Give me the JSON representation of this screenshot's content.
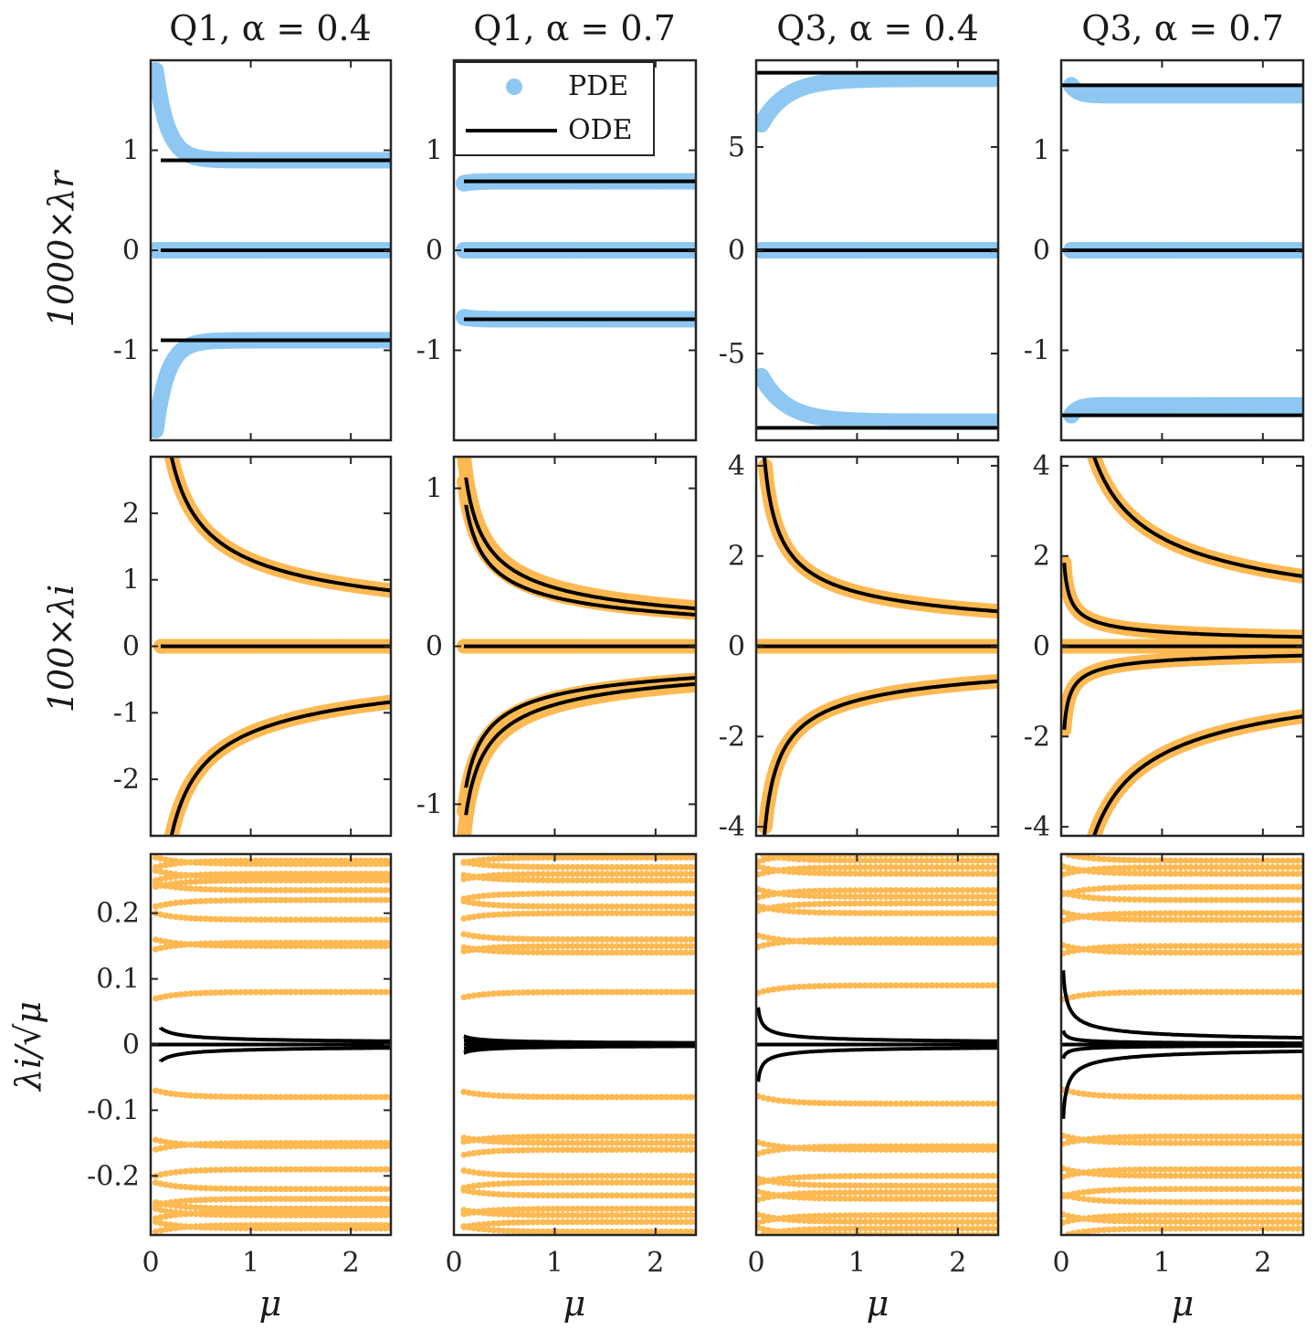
{
  "colors": {
    "pde_real": "#8ec8f2",
    "pde_imag": "#fdb952",
    "ode": "#000000",
    "axes": "#262626"
  },
  "columns": [
    {
      "title": "Q1, α = 0.4"
    },
    {
      "title": "Q1, α = 0.7"
    },
    {
      "title": "Q3, α = 0.4"
    },
    {
      "title": "Q3, α = 0.7"
    }
  ],
  "row_labels": [
    "1000×λr",
    "100×λi",
    "λi/√μ"
  ],
  "xlabel": "μ",
  "xlim": [
    0,
    2.4
  ],
  "xticks": [
    0,
    1,
    2
  ],
  "legend": {
    "pde": "PDE",
    "ode": "ODE"
  },
  "chart_data": [
    {
      "row": 0,
      "col": 0,
      "type": "scatter",
      "ylim": [
        -1.9,
        1.9
      ],
      "yticks": [
        -1,
        0,
        1
      ],
      "ytick_labels": [
        "-1",
        "0",
        "1"
      ],
      "pde": {
        "form": "decay",
        "amps": [
          0.9,
          0,
          -0.9
        ],
        "excess": [
          0.9,
          0,
          -0.9
        ],
        "tau": 0.12,
        "xmin": 0.05
      },
      "ode": {
        "values": [
          0.9,
          0,
          -0.9
        ],
        "xmin": 0.1
      }
    },
    {
      "row": 0,
      "col": 1,
      "type": "scatter",
      "ylim": [
        -1.9,
        1.9
      ],
      "yticks": [
        -1,
        0,
        1
      ],
      "ytick_labels": [
        "-1",
        "0",
        "1"
      ],
      "pde": {
        "form": "decay",
        "amps": [
          0.69,
          0,
          -0.69
        ],
        "excess": [
          -0.02,
          0,
          0.02
        ],
        "tau": 0.1,
        "xmin": 0.1
      },
      "ode": {
        "values": [
          0.69,
          0,
          -0.69
        ],
        "xmin": 0.1
      }
    },
    {
      "row": 0,
      "col": 2,
      "type": "scatter",
      "ylim": [
        -9.2,
        9.2
      ],
      "yticks": [
        -5,
        0,
        5
      ],
      "ytick_labels": [
        "-5",
        "0",
        "5"
      ],
      "pde": {
        "form": "decay",
        "amps": [
          8.3,
          0,
          -8.3
        ],
        "excess": [
          -2.2,
          0,
          2.2
        ],
        "tau": 0.25,
        "xmin": 0.05
      },
      "ode": {
        "values": [
          8.6,
          0,
          -8.6
        ],
        "xmin": 0.0
      }
    },
    {
      "row": 0,
      "col": 3,
      "type": "scatter",
      "ylim": [
        -1.9,
        1.9
      ],
      "yticks": [
        -1,
        0,
        1
      ],
      "ytick_labels": [
        "-1",
        "0",
        "1"
      ],
      "pde": {
        "form": "decay",
        "amps": [
          1.55,
          0,
          -1.55
        ],
        "excess": [
          0.1,
          0,
          -0.1
        ],
        "tau": 0.07,
        "xmin": 0.1
      },
      "ode": {
        "values": [
          1.65,
          0,
          -1.65
        ],
        "xmin": 0.0
      }
    },
    {
      "row": 1,
      "col": 0,
      "type": "scatter",
      "ylim": [
        -2.85,
        2.85
      ],
      "yticks": [
        -2,
        -1,
        0,
        1,
        2
      ],
      "ytick_labels": [
        "-2",
        "-1",
        "0",
        "1",
        "2"
      ],
      "pde": {
        "form": "power",
        "coefs": [
          1.3,
          0,
          -1.3
        ],
        "xmin": 0.2,
        "xmin0": 0.1
      },
      "ode": {
        "form": "power",
        "coefs": [
          1.3,
          0,
          -1.3
        ],
        "xmin": 0.2,
        "xmin0": 0.1
      }
    },
    {
      "row": 1,
      "col": 1,
      "type": "scatter",
      "ylim": [
        -1.2,
        1.2
      ],
      "yticks": [
        -1,
        0,
        1
      ],
      "ytick_labels": [
        "-1",
        "0",
        "1"
      ],
      "pde": {
        "form": "power",
        "coefs": [
          0.38,
          0.33,
          0,
          -0.33,
          -0.38
        ],
        "xmin": 0.1,
        "xmin0": 0.1
      },
      "ode": {
        "form": "power",
        "coefs": [
          0.37,
          0.31,
          0,
          -0.31,
          -0.37
        ],
        "xmin": 0.12,
        "xmin0": 0.1
      }
    },
    {
      "row": 1,
      "col": 2,
      "type": "scatter",
      "ylim": [
        -4.2,
        4.2
      ],
      "yticks": [
        -4,
        -2,
        0,
        2,
        4
      ],
      "ytick_labels": [
        "-4",
        "-2",
        "0",
        "2",
        "4"
      ],
      "pde": {
        "form": "power",
        "coefs": [
          1.2,
          0,
          -1.2
        ],
        "xmin": 0.09,
        "xmin0": 0.0
      },
      "ode": {
        "form": "power",
        "coefs": [
          1.2,
          0,
          -1.2
        ],
        "xmin": 0.08,
        "xmin0": 0.0
      }
    },
    {
      "row": 1,
      "col": 3,
      "type": "scatter",
      "ylim": [
        -4.2,
        4.2
      ],
      "yticks": [
        -4,
        -2,
        0,
        2,
        4
      ],
      "ytick_labels": [
        "-4",
        "-2",
        "0",
        "2",
        "4"
      ],
      "pde": {
        "form": "power",
        "coefs": [
          2.4,
          0.32,
          0,
          -0.32,
          -2.4
        ],
        "xmin": 0.03,
        "xmin0": 0.0
      },
      "ode": {
        "form": "power",
        "coefs": [
          2.4,
          0.32,
          0,
          -0.32,
          -2.4
        ],
        "xmin": 0.03,
        "xmin0": 0.0
      }
    },
    {
      "row": 2,
      "col": 0,
      "type": "scatter",
      "ylim": [
        -0.29,
        0.29
      ],
      "yticks": [
        -0.2,
        -0.1,
        0,
        0.1,
        0.2
      ],
      "ytick_labels": [
        "-0.2",
        "-0.1",
        "0",
        "0.1",
        "0.2"
      ],
      "pde": {
        "form": "bands",
        "levels": [
          0.08,
          0.15,
          0.155,
          0.19,
          0.22,
          0.235,
          0.25,
          0.255,
          0.26,
          0.275,
          0.28
        ],
        "xmin": 0.05
      },
      "ode": {
        "form": "power",
        "coefs": [
          0.008,
          0,
          -0.008
        ],
        "xmin": 0.1,
        "xmin0": 0.0
      }
    },
    {
      "row": 2,
      "col": 1,
      "type": "scatter",
      "ylim": [
        -0.29,
        0.29
      ],
      "yticks": [],
      "ytick_labels": [],
      "pde": {
        "form": "bands",
        "levels": [
          0.08,
          0.14,
          0.15,
          0.16,
          0.2,
          0.21,
          0.23,
          0.25,
          0.26,
          0.27,
          0.285
        ],
        "xmin": 0.1
      },
      "ode": {
        "form": "power",
        "coefs": [
          0.004,
          0.002,
          0,
          -0.002,
          -0.004
        ],
        "xmin": 0.1,
        "xmin0": 0.1
      }
    },
    {
      "row": 2,
      "col": 2,
      "type": "scatter",
      "ylim": [
        -0.29,
        0.29
      ],
      "yticks": [],
      "ytick_labels": [],
      "pde": {
        "form": "bands",
        "levels": [
          0.09,
          0.155,
          0.16,
          0.2,
          0.215,
          0.225,
          0.235,
          0.26,
          0.27,
          0.28,
          0.29
        ],
        "xmin": 0.02
      },
      "ode": {
        "form": "power",
        "coefs": [
          0.008,
          0,
          -0.008
        ],
        "xmin": 0.02,
        "xmin0": 0.0
      }
    },
    {
      "row": 2,
      "col": 3,
      "type": "scatter",
      "ylim": [
        -0.29,
        0.29
      ],
      "yticks": [],
      "ytick_labels": [],
      "pde": {
        "form": "bands",
        "levels": [
          0.08,
          0.14,
          0.15,
          0.19,
          0.2,
          0.22,
          0.24,
          0.26,
          0.27,
          0.28
        ],
        "xmin": 0.02
      },
      "ode": {
        "form": "power",
        "coefs": [
          0.016,
          0.003,
          0,
          -0.003,
          -0.016
        ],
        "xmin": 0.02,
        "xmin0": 0.0
      }
    }
  ]
}
